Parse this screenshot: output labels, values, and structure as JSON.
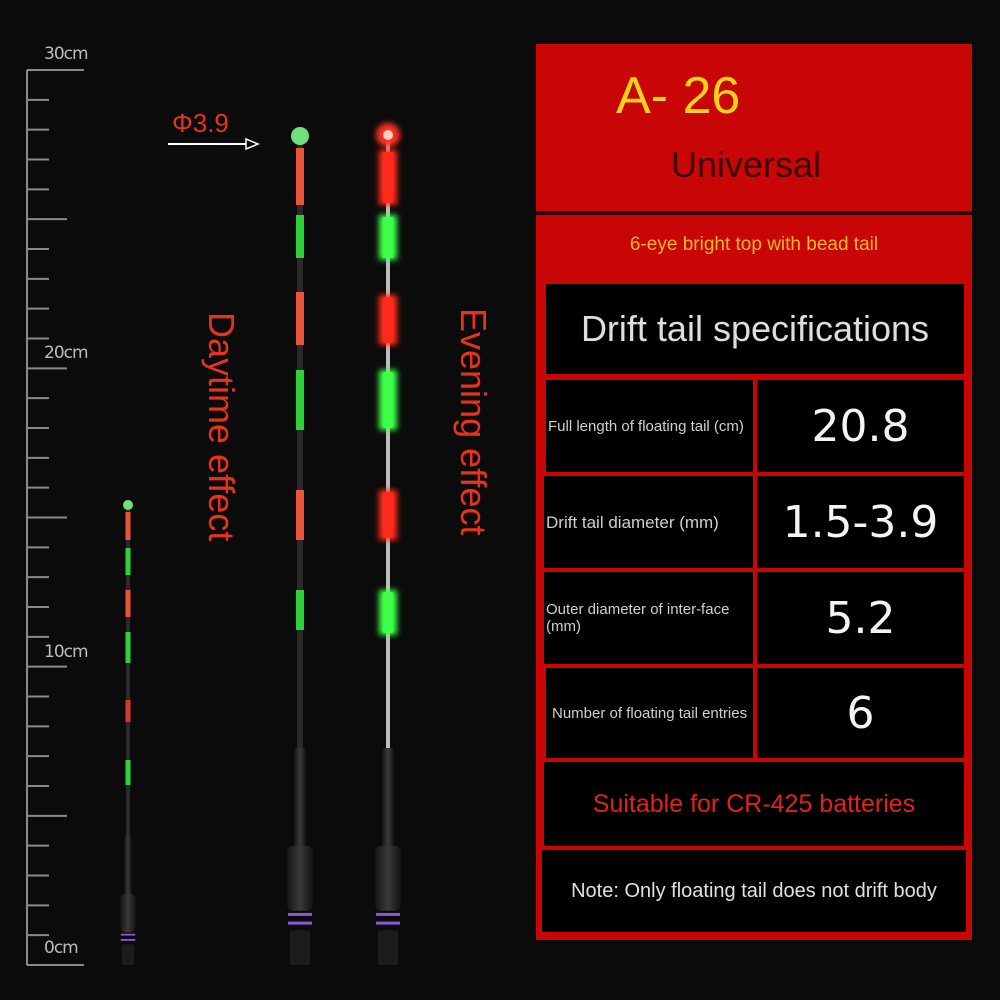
{
  "ruler": {
    "labels": {
      "top": "30cm",
      "twenty": "20cm",
      "ten": "10cm",
      "zero": "0cm"
    },
    "max_cm": 30
  },
  "diameter_callout": "Φ3.9",
  "daytime_label": "Daytime effect",
  "evening_label": "Evening effect",
  "panel": {
    "model": "A- 26",
    "universal": "Universal",
    "subtitle": "6-eye bright top with bead tail",
    "table_title": "Drift tail specifications",
    "rows": [
      {
        "label": "Full length of floating tail (cm)",
        "value": "20.8"
      },
      {
        "label": "Drift tail diameter (mm)",
        "value": "1.5-3.9"
      },
      {
        "label": "Outer diameter of inter-face (mm)",
        "value": "5.2"
      },
      {
        "label": "Number of floating tail entries",
        "value": "6"
      }
    ],
    "battery": "Suitable for CR-425 batteries",
    "note": "Note: Only floating tail does not drift body"
  },
  "colors": {
    "panel_red": "#c90606",
    "model_yellow": "#f7d21a",
    "segment_orange": "#e8553a",
    "segment_green": "#2ed13a",
    "glow_red": "#ff2a1a",
    "glow_green": "#3dff4a",
    "ring_purple": "#8a5ad6"
  }
}
